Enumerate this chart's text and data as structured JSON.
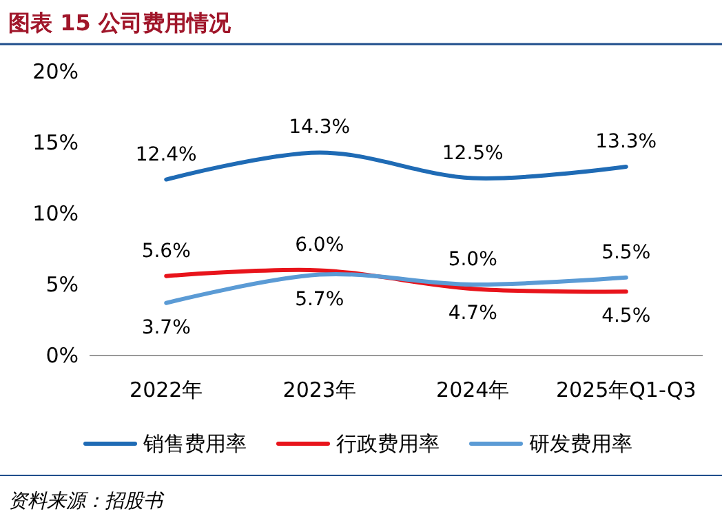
{
  "chart_data": {
    "type": "line",
    "title": "图表 15    公司费用情况",
    "categories": [
      "2022年",
      "2023年",
      "2024年",
      "2025年Q1-Q3"
    ],
    "series": [
      {
        "name": "销售费用率",
        "color": "#1f6bb5",
        "values": [
          12.4,
          14.3,
          12.5,
          13.3
        ],
        "value_labels": [
          "12.4%",
          "14.3%",
          "12.5%",
          "13.3%"
        ]
      },
      {
        "name": "行政费用率",
        "color": "#e8141b",
        "values": [
          5.6,
          6.0,
          4.7,
          4.5
        ],
        "value_labels": [
          "5.6%",
          "6.0%",
          "4.7%",
          "4.5%"
        ]
      },
      {
        "name": "研发费用率",
        "color": "#5b9bd5",
        "values": [
          3.7,
          5.7,
          5.0,
          5.5
        ],
        "value_labels": [
          "3.7%",
          "5.7%",
          "5.0%",
          "5.5%"
        ]
      }
    ],
    "ylim": [
      0,
      20
    ],
    "yticks": [
      {
        "value": 0,
        "label": "0%"
      },
      {
        "value": 5,
        "label": "5%"
      },
      {
        "value": 10,
        "label": "10%"
      },
      {
        "value": 15,
        "label": "15%"
      },
      {
        "value": 20,
        "label": "20%"
      }
    ],
    "grid": false,
    "legend": "bottom",
    "marker": "none",
    "line_style": "solid",
    "annotations": [
      "资料来源：招股书"
    ]
  }
}
